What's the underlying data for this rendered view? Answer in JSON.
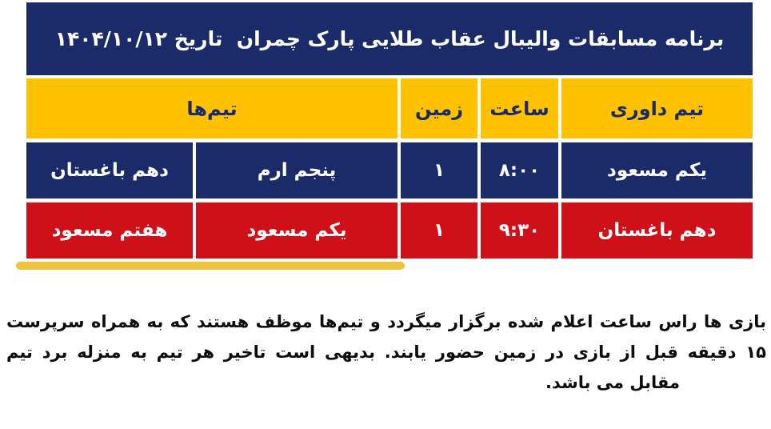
{
  "colors": {
    "navy": "#1b2a68",
    "yellow": "#ffc200",
    "red": "#ce1118",
    "gold_bar": "#eec33a",
    "text": "#0d0d0d"
  },
  "banner": {
    "title": "برنامه مسابقات والیبال عقاب طلایی پارک چمران  تاریخ ۱۴۰۴/۱۰/۱۲"
  },
  "table": {
    "headers": {
      "referee_team": "تیم داوری",
      "time": "ساعت",
      "field": "زمین",
      "teams": "تیم‌ها"
    },
    "rows": [
      {
        "referee_team": "یکم مسعود",
        "time": "۸:۰۰",
        "field": "۱",
        "team_a": "پنجم ارم",
        "team_b": "دهم باغستان"
      },
      {
        "referee_team": "دهم باغستان",
        "time": "۹:۳۰",
        "field": "۱",
        "team_a": "یکم مسعود",
        "team_b": "هفتم مسعود"
      }
    ]
  },
  "note": {
    "line1": "بازی ها راس ساعت اعلام شده برگزار میگردد و تیم‌ها موظف هستند که به همراه سرپرست",
    "line2": "۱۵ دقیقه قبل از بازی در زمین حضور یابند. بدیهی است تاخیر هر تیم به منزله برد تیم",
    "line3": "مقابل می باشد."
  }
}
